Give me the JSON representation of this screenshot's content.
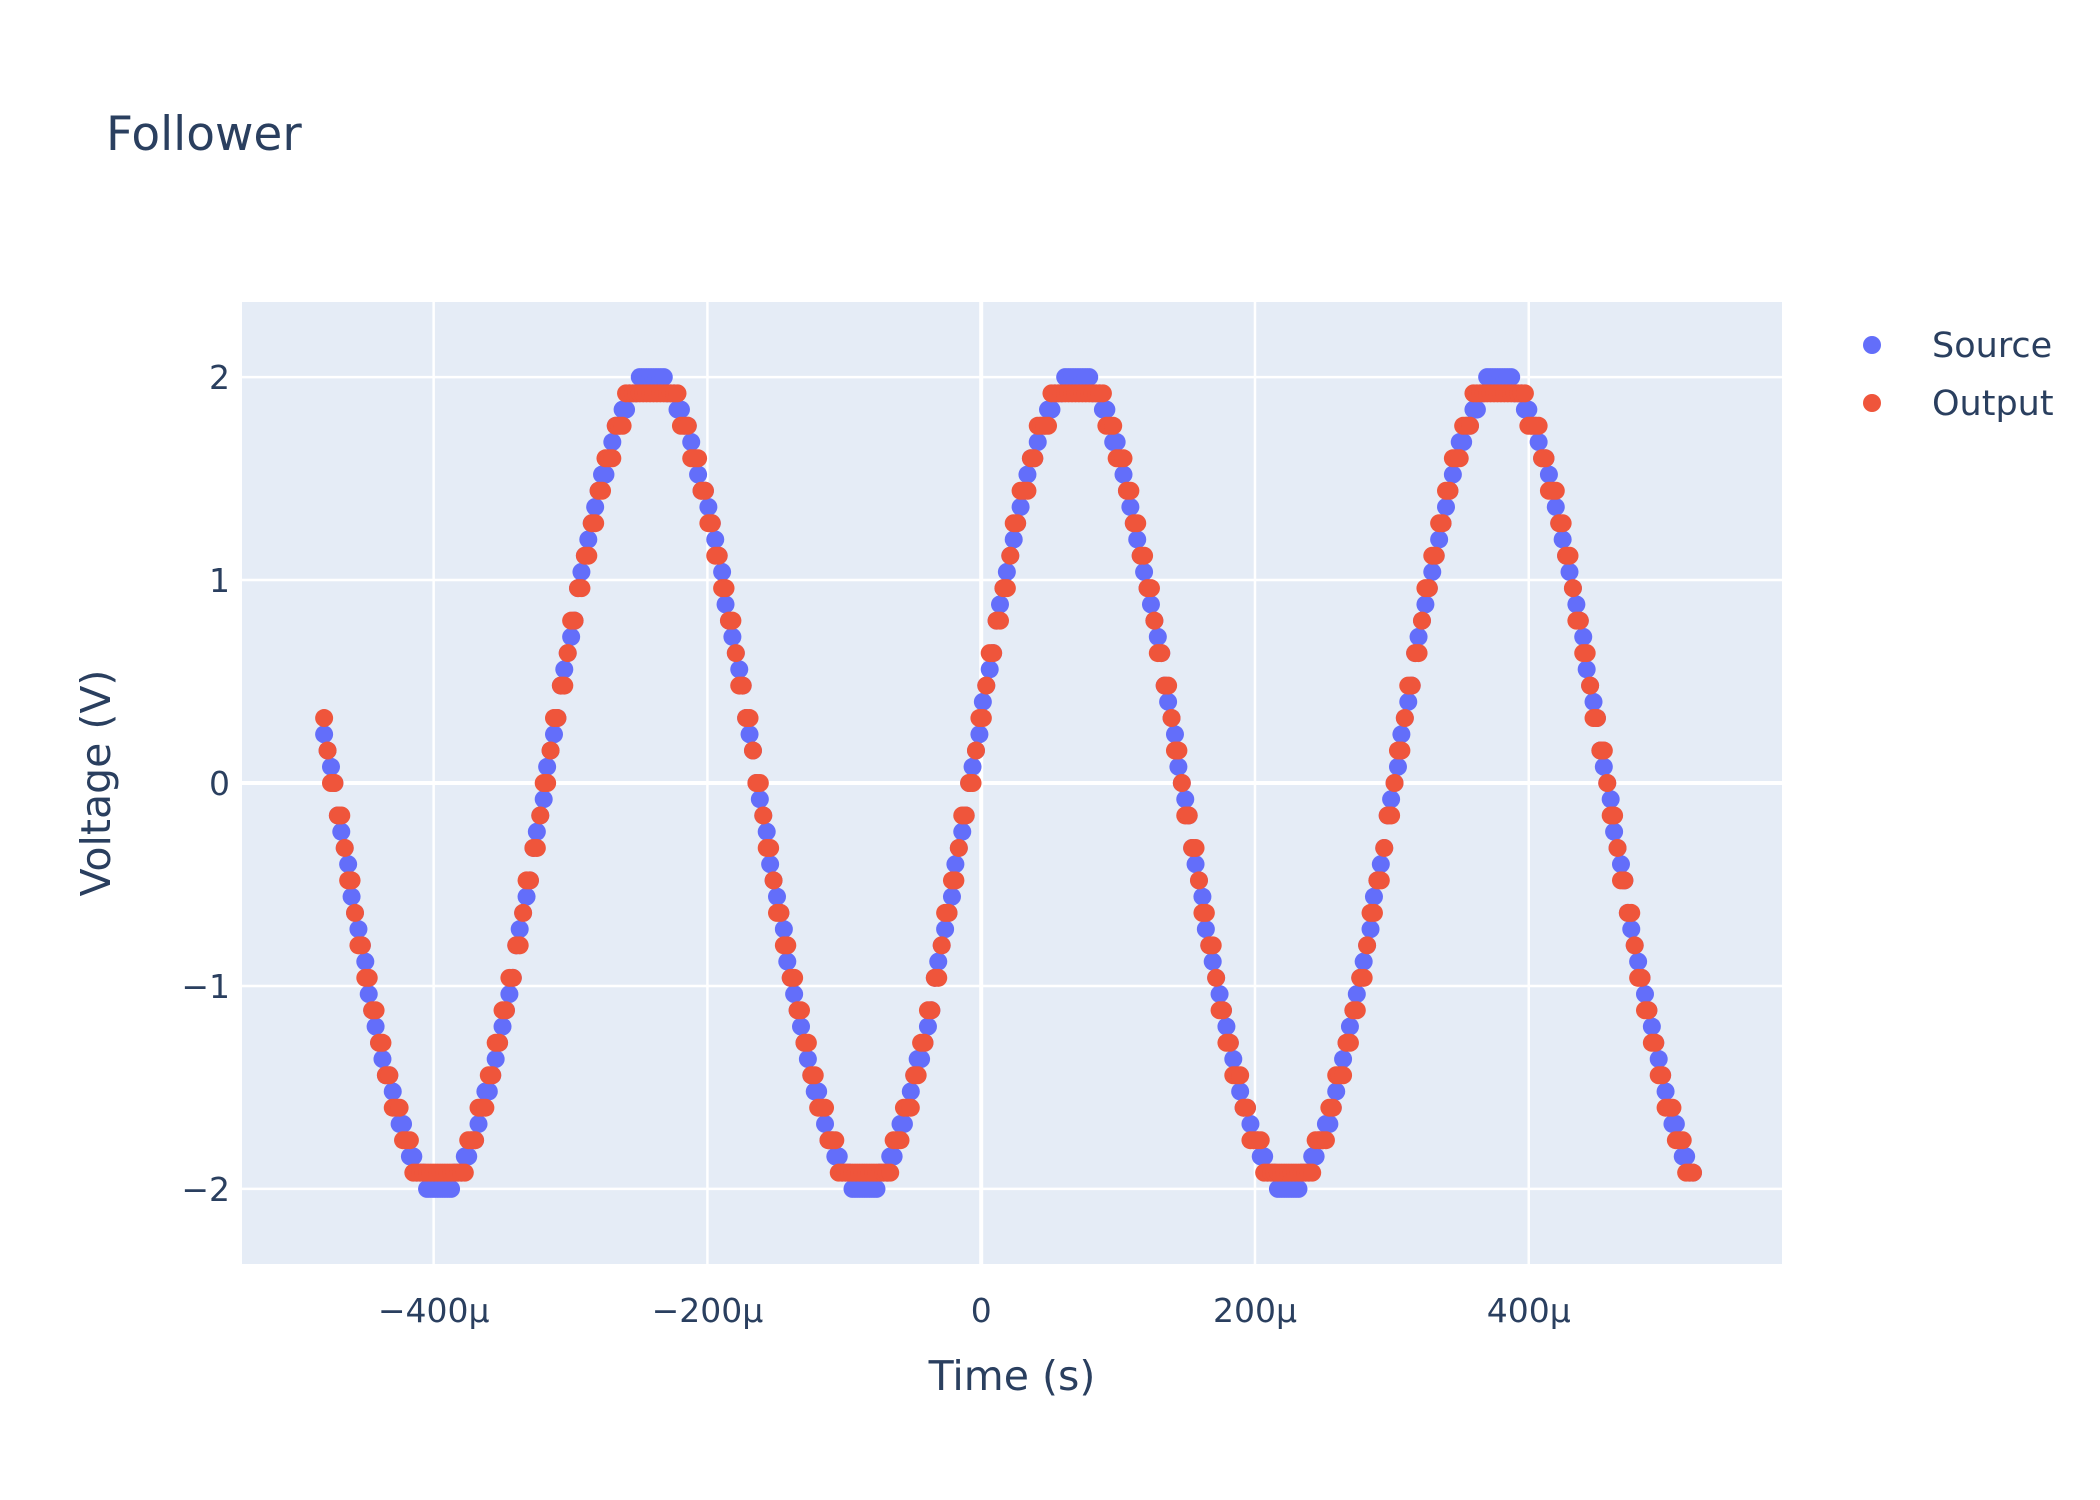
{
  "chart_data": {
    "type": "scatter",
    "title": "Follower",
    "xlabel": "Time (s)",
    "ylabel": "Voltage (V)",
    "xlim": [
      -0.00054,
      0.000585
    ],
    "ylim": [
      -2.37,
      2.37
    ],
    "grid": true,
    "legend_position": "top-right",
    "background_color": "#e5ecf6",
    "x_ticks": [
      {
        "value": -0.0004,
        "label": "−400μ"
      },
      {
        "value": -0.0002,
        "label": "−200μ"
      },
      {
        "value": 0,
        "label": "0"
      },
      {
        "value": 0.0002,
        "label": "200μ"
      },
      {
        "value": 0.0004,
        "label": "400μ"
      }
    ],
    "y_ticks": [
      {
        "value": -2,
        "label": "−2"
      },
      {
        "value": -1,
        "label": "−1"
      },
      {
        "value": 0,
        "label": "0"
      },
      {
        "value": 1,
        "label": "1"
      },
      {
        "value": 2,
        "label": "2"
      }
    ],
    "series": [
      {
        "name": "Source",
        "color": "#636efa",
        "waveform": "sine",
        "amplitude": 2.0,
        "frequency_hz": 3225,
        "phase_rad": 0.166,
        "quantization_step_v": 0.08,
        "x_start": -0.00048,
        "x_end": 0.00052,
        "n_points": 400
      },
      {
        "name": "Output",
        "color": "#ef553b",
        "waveform": "sine",
        "amplitude": 2.0,
        "frequency_hz": 3225,
        "phase_rad": 0.166,
        "quantization_step_v": 0.16,
        "clip_max": 2.08,
        "clip_min": -2.08,
        "x_start": -0.00048,
        "x_end": 0.00052,
        "n_points": 400
      }
    ]
  }
}
